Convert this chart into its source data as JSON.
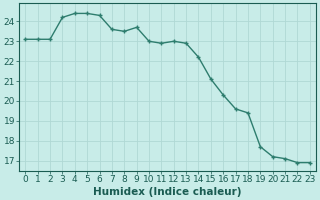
{
  "x": [
    0,
    1,
    2,
    3,
    4,
    5,
    6,
    7,
    8,
    9,
    10,
    11,
    12,
    13,
    14,
    15,
    16,
    17,
    18,
    19,
    20,
    21,
    22,
    23
  ],
  "y": [
    23.1,
    23.1,
    23.1,
    24.2,
    24.4,
    24.4,
    24.3,
    23.6,
    23.5,
    23.7,
    23.0,
    22.9,
    23.0,
    22.9,
    22.2,
    21.1,
    20.3,
    19.6,
    19.4,
    17.7,
    17.2,
    17.1,
    16.9,
    16.9
  ],
  "line_color": "#2e7d6e",
  "marker": "+",
  "marker_size": 3,
  "marker_lw": 1.0,
  "bg_color": "#c8ece8",
  "grid_color": "#b0d8d4",
  "xlabel": "Humidex (Indice chaleur)",
  "xlim": [
    -0.5,
    23.5
  ],
  "ylim": [
    16.5,
    24.9
  ],
  "yticks": [
    17,
    18,
    19,
    20,
    21,
    22,
    23,
    24
  ],
  "xticks": [
    0,
    1,
    2,
    3,
    4,
    5,
    6,
    7,
    8,
    9,
    10,
    11,
    12,
    13,
    14,
    15,
    16,
    17,
    18,
    19,
    20,
    21,
    22,
    23
  ],
  "tick_fontsize": 6.5,
  "label_fontsize": 7.5,
  "label_color": "#1a5c52",
  "tick_color": "#1a5c52",
  "spine_color": "#1a5c52",
  "line_width": 1.0
}
